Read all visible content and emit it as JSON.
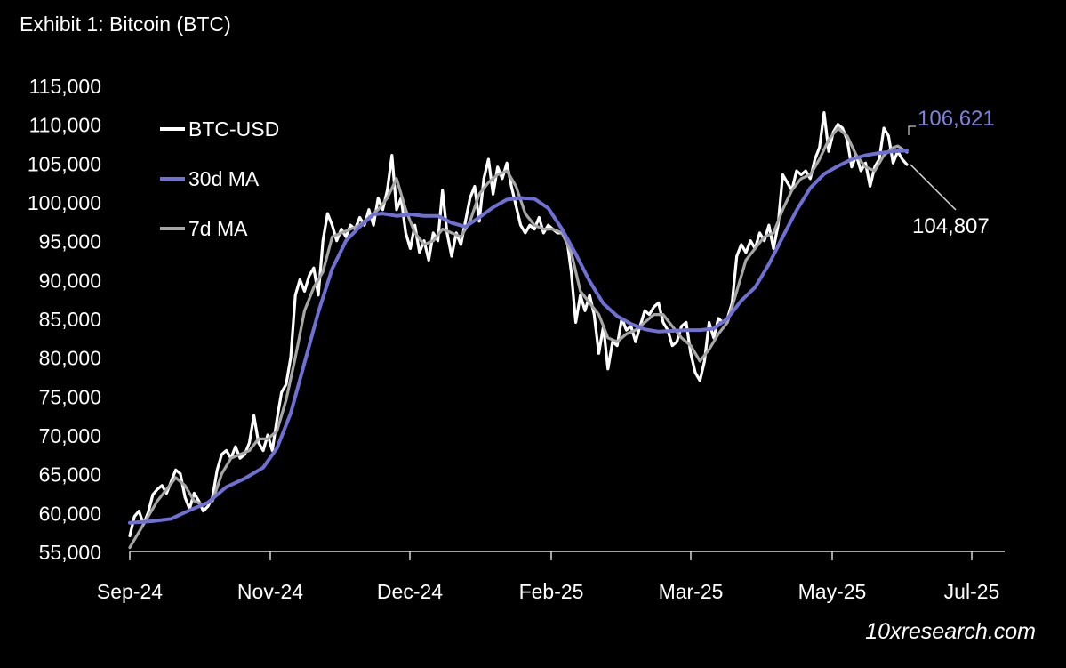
{
  "chart_data": {
    "type": "line",
    "title": "Exhibit 1: Bitcoin (BTC)",
    "xlabel": "",
    "ylabel": "",
    "ylim": [
      55000,
      115000
    ],
    "y_ticks": [
      "55,000",
      "60,000",
      "65,000",
      "70,000",
      "75,000",
      "80,000",
      "85,000",
      "90,000",
      "95,000",
      "100,000",
      "105,000",
      "110,000",
      "115,000"
    ],
    "x_ticks": [
      "Sep-24",
      "Nov-24",
      "Dec-24",
      "Feb-25",
      "Mar-25",
      "May-25",
      "Jul-25"
    ],
    "legend_position": "top-left",
    "series": [
      {
        "name": "BTC-USD",
        "color": "#ffffff",
        "points": [
          [
            0,
            57000
          ],
          [
            2,
            59500
          ],
          [
            4,
            60200
          ],
          [
            6,
            58500
          ],
          [
            8,
            60000
          ],
          [
            10,
            62300
          ],
          [
            12,
            63000
          ],
          [
            14,
            63500
          ],
          [
            16,
            62500
          ],
          [
            18,
            64000
          ],
          [
            20,
            65500
          ],
          [
            22,
            65000
          ],
          [
            24,
            62000
          ],
          [
            26,
            60500
          ],
          [
            28,
            62500
          ],
          [
            30,
            61500
          ],
          [
            32,
            60200
          ],
          [
            34,
            60800
          ],
          [
            36,
            62000
          ],
          [
            38,
            65500
          ],
          [
            40,
            67500
          ],
          [
            42,
            68000
          ],
          [
            44,
            67000
          ],
          [
            46,
            68500
          ],
          [
            48,
            67000
          ],
          [
            50,
            67500
          ],
          [
            52,
            69000
          ],
          [
            54,
            72500
          ],
          [
            56,
            69000
          ],
          [
            58,
            68000
          ],
          [
            60,
            70000
          ],
          [
            62,
            68000
          ],
          [
            64,
            72000
          ],
          [
            66,
            75500
          ],
          [
            68,
            76500
          ],
          [
            70,
            80000
          ],
          [
            72,
            88000
          ],
          [
            74,
            90000
          ],
          [
            76,
            88500
          ],
          [
            78,
            90500
          ],
          [
            80,
            91500
          ],
          [
            82,
            88000
          ],
          [
            84,
            95000
          ],
          [
            86,
            98500
          ],
          [
            88,
            97000
          ],
          [
            90,
            95000
          ],
          [
            92,
            96500
          ],
          [
            94,
            95500
          ],
          [
            96,
            97000
          ],
          [
            98,
            96500
          ],
          [
            100,
            98000
          ],
          [
            102,
            97000
          ],
          [
            104,
            99000
          ],
          [
            106,
            97000
          ],
          [
            108,
            100500
          ],
          [
            110,
            99000
          ],
          [
            112,
            101500
          ],
          [
            114,
            106000
          ],
          [
            116,
            99000
          ],
          [
            118,
            100500
          ],
          [
            120,
            96000
          ],
          [
            122,
            94000
          ],
          [
            124,
            97000
          ],
          [
            126,
            93500
          ],
          [
            128,
            95000
          ],
          [
            130,
            92500
          ],
          [
            132,
            96000
          ],
          [
            134,
            95000
          ],
          [
            136,
            101500
          ],
          [
            138,
            96000
          ],
          [
            140,
            93000
          ],
          [
            142,
            96000
          ],
          [
            144,
            94500
          ],
          [
            146,
            97500
          ],
          [
            148,
            100500
          ],
          [
            150,
            102000
          ],
          [
            152,
            97500
          ],
          [
            154,
            103000
          ],
          [
            156,
            105500
          ],
          [
            158,
            101000
          ],
          [
            160,
            104500
          ],
          [
            162,
            103000
          ],
          [
            164,
            105000
          ],
          [
            166,
            102000
          ],
          [
            168,
            99500
          ],
          [
            170,
            97000
          ],
          [
            172,
            96000
          ],
          [
            174,
            97000
          ],
          [
            176,
            96500
          ],
          [
            178,
            98000
          ],
          [
            180,
            96000
          ],
          [
            182,
            97000
          ],
          [
            184,
            96500
          ],
          [
            186,
            96000
          ],
          [
            188,
            96000
          ],
          [
            190,
            95500
          ],
          [
            192,
            91000
          ],
          [
            194,
            84500
          ],
          [
            196,
            88000
          ],
          [
            198,
            86000
          ],
          [
            200,
            88000
          ],
          [
            202,
            85500
          ],
          [
            204,
            80500
          ],
          [
            206,
            84000
          ],
          [
            208,
            78500
          ],
          [
            210,
            82000
          ],
          [
            212,
            81500
          ],
          [
            214,
            85000
          ],
          [
            216,
            83500
          ],
          [
            218,
            84000
          ],
          [
            220,
            82000
          ],
          [
            222,
            84000
          ],
          [
            224,
            86000
          ],
          [
            226,
            85500
          ],
          [
            228,
            86500
          ],
          [
            230,
            87000
          ],
          [
            232,
            84500
          ],
          [
            234,
            83500
          ],
          [
            236,
            81500
          ],
          [
            238,
            82000
          ],
          [
            240,
            84000
          ],
          [
            242,
            84500
          ],
          [
            244,
            80500
          ],
          [
            246,
            78000
          ],
          [
            248,
            77000
          ],
          [
            250,
            79500
          ],
          [
            252,
            84500
          ],
          [
            254,
            82500
          ],
          [
            256,
            85000
          ],
          [
            258,
            84500
          ],
          [
            260,
            85000
          ],
          [
            262,
            87000
          ],
          [
            264,
            93000
          ],
          [
            266,
            94500
          ],
          [
            268,
            93500
          ],
          [
            270,
            95000
          ],
          [
            272,
            94000
          ],
          [
            274,
            96000
          ],
          [
            276,
            95000
          ],
          [
            278,
            97000
          ],
          [
            280,
            94000
          ],
          [
            282,
            97000
          ],
          [
            284,
            103500
          ],
          [
            286,
            102500
          ],
          [
            288,
            101500
          ],
          [
            290,
            104000
          ],
          [
            292,
            103500
          ],
          [
            294,
            104000
          ],
          [
            296,
            103000
          ],
          [
            298,
            105500
          ],
          [
            300,
            107000
          ],
          [
            302,
            111500
          ],
          [
            304,
            106500
          ],
          [
            306,
            109000
          ],
          [
            308,
            110000
          ],
          [
            310,
            109500
          ],
          [
            312,
            108000
          ],
          [
            314,
            104500
          ],
          [
            316,
            106000
          ],
          [
            318,
            104000
          ],
          [
            320,
            105000
          ],
          [
            322,
            102000
          ],
          [
            324,
            104500
          ],
          [
            326,
            105500
          ],
          [
            328,
            109500
          ],
          [
            330,
            108500
          ],
          [
            332,
            105000
          ],
          [
            334,
            106500
          ],
          [
            336,
            105500
          ],
          [
            338,
            104807
          ]
        ]
      },
      {
        "name": "7d MA",
        "color": "#a6a6a6",
        "points": [
          [
            0,
            55500
          ],
          [
            4,
            57500
          ],
          [
            8,
            59500
          ],
          [
            12,
            61500
          ],
          [
            16,
            63000
          ],
          [
            20,
            64500
          ],
          [
            24,
            63500
          ],
          [
            28,
            61500
          ],
          [
            32,
            61000
          ],
          [
            36,
            61500
          ],
          [
            40,
            65000
          ],
          [
            44,
            67000
          ],
          [
            48,
            67500
          ],
          [
            52,
            68000
          ],
          [
            56,
            69500
          ],
          [
            60,
            69500
          ],
          [
            64,
            70500
          ],
          [
            68,
            74500
          ],
          [
            72,
            80000
          ],
          [
            76,
            86000
          ],
          [
            80,
            89000
          ],
          [
            84,
            91000
          ],
          [
            88,
            95500
          ],
          [
            92,
            96000
          ],
          [
            96,
            96500
          ],
          [
            100,
            97000
          ],
          [
            104,
            98000
          ],
          [
            108,
            99000
          ],
          [
            112,
            100500
          ],
          [
            116,
            103000
          ],
          [
            120,
            99000
          ],
          [
            124,
            96000
          ],
          [
            128,
            94500
          ],
          [
            132,
            95000
          ],
          [
            136,
            96500
          ],
          [
            140,
            96000
          ],
          [
            144,
            95500
          ],
          [
            148,
            97500
          ],
          [
            152,
            101000
          ],
          [
            156,
            102500
          ],
          [
            160,
            103500
          ],
          [
            164,
            104000
          ],
          [
            168,
            102000
          ],
          [
            172,
            98500
          ],
          [
            176,
            97000
          ],
          [
            180,
            96500
          ],
          [
            184,
            96500
          ],
          [
            188,
            96000
          ],
          [
            192,
            93500
          ],
          [
            196,
            88500
          ],
          [
            200,
            87000
          ],
          [
            204,
            85500
          ],
          [
            208,
            82500
          ],
          [
            212,
            82000
          ],
          [
            216,
            83000
          ],
          [
            220,
            83500
          ],
          [
            224,
            84500
          ],
          [
            228,
            85500
          ],
          [
            232,
            85500
          ],
          [
            236,
            84000
          ],
          [
            240,
            82500
          ],
          [
            244,
            81500
          ],
          [
            248,
            79500
          ],
          [
            252,
            81000
          ],
          [
            256,
            83000
          ],
          [
            260,
            84500
          ],
          [
            264,
            88500
          ],
          [
            268,
            92500
          ],
          [
            272,
            94000
          ],
          [
            276,
            95500
          ],
          [
            280,
            96000
          ],
          [
            284,
            99000
          ],
          [
            288,
            101500
          ],
          [
            292,
            103000
          ],
          [
            296,
            103500
          ],
          [
            300,
            105500
          ],
          [
            304,
            108000
          ],
          [
            308,
            109500
          ],
          [
            312,
            108500
          ],
          [
            316,
            106000
          ],
          [
            320,
            104500
          ],
          [
            324,
            104000
          ],
          [
            328,
            106000
          ],
          [
            332,
            107000
          ],
          [
            334,
            107200
          ],
          [
            336,
            106800
          ],
          [
            338,
            106400
          ]
        ]
      },
      {
        "name": "30d MA",
        "color": "#6f6fd4",
        "points": [
          [
            0,
            58700
          ],
          [
            10,
            58900
          ],
          [
            18,
            59200
          ],
          [
            26,
            60300
          ],
          [
            34,
            61300
          ],
          [
            42,
            63300
          ],
          [
            50,
            64400
          ],
          [
            58,
            65800
          ],
          [
            64,
            68300
          ],
          [
            70,
            72800
          ],
          [
            76,
            79300
          ],
          [
            82,
            85800
          ],
          [
            88,
            91400
          ],
          [
            94,
            95000
          ],
          [
            100,
            96800
          ],
          [
            106,
            98400
          ],
          [
            110,
            98500
          ],
          [
            116,
            98200
          ],
          [
            122,
            98400
          ],
          [
            128,
            98200
          ],
          [
            134,
            98200
          ],
          [
            140,
            97300
          ],
          [
            146,
            96800
          ],
          [
            152,
            98000
          ],
          [
            158,
            99300
          ],
          [
            164,
            100300
          ],
          [
            170,
            100500
          ],
          [
            176,
            100400
          ],
          [
            182,
            99200
          ],
          [
            188,
            96500
          ],
          [
            194,
            93300
          ],
          [
            200,
            89800
          ],
          [
            206,
            86900
          ],
          [
            212,
            85300
          ],
          [
            218,
            84300
          ],
          [
            224,
            83600
          ],
          [
            230,
            83300
          ],
          [
            236,
            83400
          ],
          [
            242,
            83500
          ],
          [
            248,
            83500
          ],
          [
            254,
            83700
          ],
          [
            260,
            85000
          ],
          [
            266,
            87300
          ],
          [
            272,
            89000
          ],
          [
            278,
            92000
          ],
          [
            284,
            95500
          ],
          [
            290,
            98900
          ],
          [
            296,
            101800
          ],
          [
            302,
            103600
          ],
          [
            308,
            104600
          ],
          [
            314,
            105500
          ],
          [
            320,
            106000
          ],
          [
            326,
            106300
          ],
          [
            332,
            106500
          ],
          [
            338,
            106621
          ]
        ]
      }
    ],
    "annotations": [
      {
        "text": "106,621",
        "color": "#8080e0"
      },
      {
        "text": "104,807",
        "color": "#ffffff"
      }
    ]
  },
  "watermark": "10xresearch.com"
}
